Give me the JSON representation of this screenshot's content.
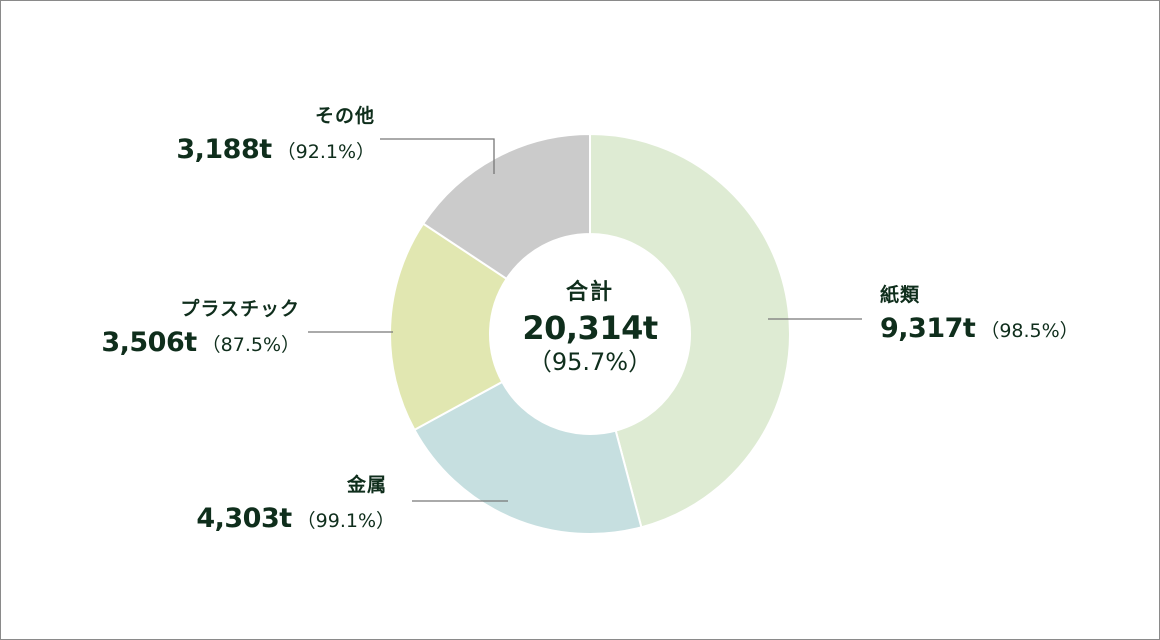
{
  "chart_data": {
    "type": "pie",
    "donut": true,
    "slices": [
      {
        "label": "紙類",
        "amount": "9,317t",
        "percent": "（98.5%）",
        "value": 9317,
        "color": "#deebd3"
      },
      {
        "label": "金属",
        "amount": "4,303t",
        "percent": "（99.1%）",
        "value": 4303,
        "color": "#c6dfe0"
      },
      {
        "label": "プラスチック",
        "amount": "3,506t",
        "percent": "（87.5%）",
        "value": 3506,
        "color": "#e1e7b1"
      },
      {
        "label": "その他",
        "amount": "3,188t",
        "percent": "（92.1%）",
        "value": 3188,
        "color": "#cbcbcb"
      }
    ],
    "center": {
      "title": "合計",
      "total": "20,314t",
      "percent": "（95.7%）"
    },
    "text_color": "#0f2e1c",
    "leader_color": "#777777"
  }
}
